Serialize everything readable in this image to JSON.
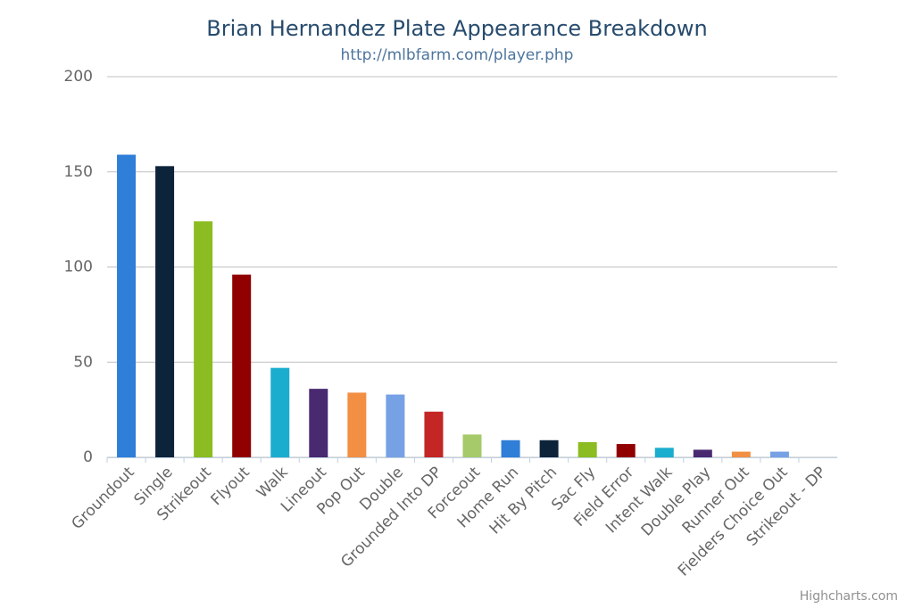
{
  "chart_data": {
    "type": "bar",
    "title": "Brian Hernandez Plate Appearance Breakdown",
    "subtitle": "http://mlbfarm.com/player.php",
    "credits": "Highcharts.com",
    "categories": [
      "Groundout",
      "Single",
      "Strikeout",
      "Flyout",
      "Walk",
      "Lineout",
      "Pop Out",
      "Double",
      "Grounded Into DP",
      "Forceout",
      "Home Run",
      "Hit By Pitch",
      "Sac Fly",
      "Field Error",
      "Intent Walk",
      "Double Play",
      "Runner Out",
      "Fielders Choice Out",
      "Strikeout - DP"
    ],
    "values": [
      159,
      153,
      124,
      96,
      47,
      36,
      34,
      33,
      24,
      12,
      9,
      9,
      8,
      7,
      5,
      4,
      3,
      3,
      0
    ],
    "colors": [
      "#2f7ed8",
      "#0d233a",
      "#8bbc21",
      "#910000",
      "#1aadce",
      "#492970",
      "#f28f43",
      "#77a1e5",
      "#c42525",
      "#a6c96a",
      "#2f7ed8",
      "#0d233a",
      "#8bbc21",
      "#910000",
      "#1aadce",
      "#492970",
      "#f28f43",
      "#77a1e5",
      "#c42525"
    ],
    "ylim": [
      0,
      200
    ],
    "yticks": [
      0,
      50,
      100,
      150,
      200
    ],
    "grid": true
  }
}
